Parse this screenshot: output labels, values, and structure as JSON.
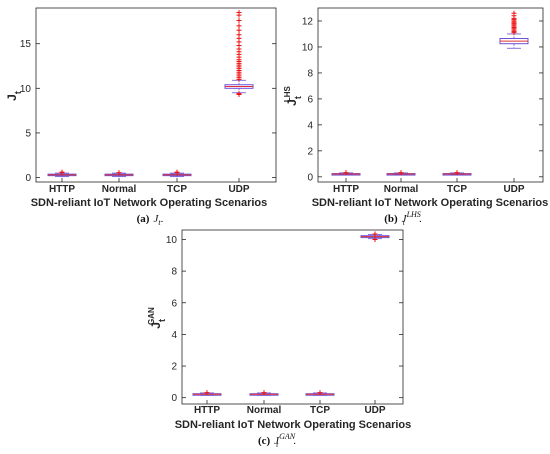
{
  "figure": {
    "panels": [
      {
        "caption_tag": "(a)",
        "caption_symbol": "J",
        "caption_sub": "t",
        "caption_sup": "",
        "ylabel_main": "J",
        "ylabel_sub": "t",
        "ylabel_sup": "",
        "xlabel": "SDN-reliant IoT Network Operating Scenarios"
      },
      {
        "caption_tag": "(b)",
        "caption_symbol": "J",
        "caption_sub": "t",
        "caption_sup": "LHS",
        "ylabel_main": "J",
        "ylabel_sub": "t",
        "ylabel_sup": "LHS",
        "xlabel": "SDN-reliant IoT Network Operating Scenarios"
      },
      {
        "caption_tag": "(c)",
        "caption_symbol": "J",
        "caption_sub": "t",
        "caption_sup": "GAN",
        "ylabel_main": "J",
        "ylabel_sub": "t",
        "ylabel_sup": "GAN",
        "xlabel": "SDN-reliant IoT Network Operating Scenarios"
      }
    ],
    "colors": {
      "box": "#6b4fd8",
      "median": "#e03030",
      "outlier": "#ee1111",
      "axis": "#262626"
    }
  },
  "chart_data": [
    {
      "type": "boxplot",
      "categories": [
        "HTTP",
        "Normal",
        "TCP",
        "UDP"
      ],
      "ylim": [
        -0.5,
        19
      ],
      "yticks": [
        0,
        5,
        10,
        15
      ],
      "boxes": [
        {
          "min": 0.1,
          "q1": 0.22,
          "median": 0.3,
          "q3": 0.38,
          "max": 0.5,
          "outliers": [
            0.55,
            0.6
          ]
        },
        {
          "min": 0.1,
          "q1": 0.22,
          "median": 0.3,
          "q3": 0.38,
          "max": 0.5,
          "outliers": [
            0.55
          ]
        },
        {
          "min": 0.1,
          "q1": 0.22,
          "median": 0.3,
          "q3": 0.38,
          "max": 0.5,
          "outliers": [
            0.55,
            0.6
          ]
        },
        {
          "min": 9.5,
          "q1": 10.0,
          "median": 10.2,
          "q3": 10.4,
          "max": 10.9,
          "outliers": [
            9.3,
            9.4,
            11.0,
            11.2,
            11.4,
            11.6,
            11.8,
            12.0,
            12.2,
            12.4,
            12.6,
            12.8,
            13.0,
            13.2,
            13.5,
            13.8,
            14.1,
            14.4,
            14.8,
            15.2,
            15.6,
            16.0,
            16.5,
            17.0,
            17.6,
            18.2,
            18.5
          ]
        }
      ]
    },
    {
      "type": "boxplot",
      "categories": [
        "HTTP",
        "Normal",
        "TCP",
        "UDP"
      ],
      "ylim": [
        -0.4,
        13
      ],
      "yticks": [
        0,
        2,
        4,
        6,
        8,
        10,
        12
      ],
      "boxes": [
        {
          "min": 0.15,
          "q1": 0.2,
          "median": 0.22,
          "q3": 0.25,
          "max": 0.3,
          "outliers": [
            0.32
          ]
        },
        {
          "min": 0.15,
          "q1": 0.2,
          "median": 0.22,
          "q3": 0.25,
          "max": 0.3,
          "outliers": [
            0.32
          ]
        },
        {
          "min": 0.15,
          "q1": 0.2,
          "median": 0.22,
          "q3": 0.25,
          "max": 0.3,
          "outliers": [
            0.32
          ]
        },
        {
          "min": 9.9,
          "q1": 10.25,
          "median": 10.45,
          "q3": 10.65,
          "max": 11.0,
          "outliers": [
            11.1,
            11.2,
            11.3,
            11.4,
            11.5,
            11.6,
            11.7,
            11.8,
            11.9,
            12.0,
            12.1,
            12.2,
            12.4,
            12.6
          ]
        }
      ]
    },
    {
      "type": "boxplot",
      "categories": [
        "HTTP",
        "Normal",
        "TCP",
        "UDP"
      ],
      "ylim": [
        -0.4,
        10.6
      ],
      "yticks": [
        0,
        2,
        4,
        6,
        8,
        10
      ],
      "boxes": [
        {
          "min": 0.15,
          "q1": 0.2,
          "median": 0.22,
          "q3": 0.25,
          "max": 0.3,
          "outliers": [
            0.32
          ]
        },
        {
          "min": 0.15,
          "q1": 0.2,
          "median": 0.22,
          "q3": 0.25,
          "max": 0.3,
          "outliers": [
            0.32
          ]
        },
        {
          "min": 0.15,
          "q1": 0.2,
          "median": 0.22,
          "q3": 0.25,
          "max": 0.3,
          "outliers": [
            0.32
          ]
        },
        {
          "min": 10.05,
          "q1": 10.12,
          "median": 10.18,
          "q3": 10.24,
          "max": 10.32,
          "outliers": [
            10.0,
            10.35
          ]
        }
      ]
    }
  ]
}
